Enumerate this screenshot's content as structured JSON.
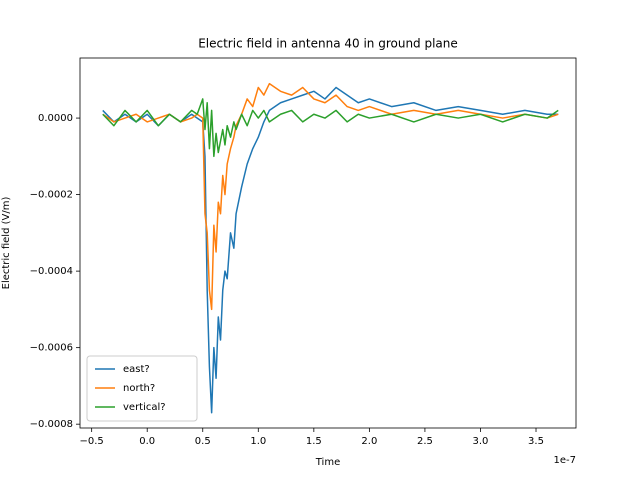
{
  "chart_data": {
    "type": "line",
    "title": "Electric field in antenna 40 in ground plane",
    "x_label": "Time",
    "y_label": "Electric field (V/m)",
    "x_offset_label": "1e-7",
    "x": [
      -0.4,
      -0.3,
      -0.2,
      -0.1,
      0,
      0.1,
      0.2,
      0.3,
      0.4,
      0.45,
      0.5,
      0.52,
      0.54,
      0.56,
      0.58,
      0.6,
      0.62,
      0.64,
      0.66,
      0.68,
      0.7,
      0.72,
      0.75,
      0.78,
      0.8,
      0.85,
      0.9,
      0.95,
      1.0,
      1.05,
      1.1,
      1.2,
      1.3,
      1.4,
      1.5,
      1.6,
      1.7,
      1.8,
      1.9,
      2.0,
      2.2,
      2.4,
      2.6,
      2.8,
      3.0,
      3.2,
      3.4,
      3.6,
      3.7
    ],
    "series": [
      {
        "name": "east?",
        "color": "#1f77b4",
        "values": [
          2e-05,
          -1e-05,
          1e-05,
          -1e-05,
          1e-05,
          -2e-05,
          1e-05,
          -1e-05,
          1e-05,
          0,
          -1e-05,
          -0.0001,
          -0.00045,
          -0.00065,
          -0.00077,
          -0.0006,
          -0.00068,
          -0.00052,
          -0.00058,
          -0.00045,
          -0.0004,
          -0.00042,
          -0.0003,
          -0.00034,
          -0.00025,
          -0.00018,
          -0.00012,
          -8e-05,
          -5e-05,
          -1e-05,
          2e-05,
          4e-05,
          5e-05,
          6e-05,
          7e-05,
          5e-05,
          8e-05,
          6e-05,
          4e-05,
          5e-05,
          3e-05,
          4e-05,
          2e-05,
          3e-05,
          2e-05,
          1e-05,
          2e-05,
          1e-05,
          1e-05
        ]
      },
      {
        "name": "north?",
        "color": "#ff7f0e",
        "values": [
          1e-05,
          -1e-05,
          0,
          1e-05,
          -1e-05,
          0,
          1e-05,
          -1e-05,
          0,
          1e-05,
          0,
          -0.00025,
          -0.0003,
          -0.00045,
          -0.0005,
          -0.00028,
          -0.00035,
          -0.00022,
          -0.00025,
          -0.00015,
          -0.0002,
          -0.00012,
          -8e-05,
          -5e-05,
          -2e-05,
          1e-05,
          5e-05,
          3e-05,
          8e-05,
          6e-05,
          9e-05,
          7e-05,
          6e-05,
          8e-05,
          5e-05,
          4e-05,
          6e-05,
          3e-05,
          2e-05,
          3e-05,
          1e-05,
          2e-05,
          1e-05,
          2e-05,
          1e-05,
          0,
          1e-05,
          0,
          1e-05
        ]
      },
      {
        "name": "vertical?",
        "color": "#2ca02c",
        "values": [
          1e-05,
          -2e-05,
          2e-05,
          -1e-05,
          2e-05,
          -2e-05,
          1e-05,
          -1e-05,
          2e-05,
          1e-05,
          5e-05,
          -3e-05,
          4e-05,
          -8e-05,
          2e-05,
          -0.0001,
          -4e-05,
          -9e-05,
          -6e-05,
          -3e-05,
          -7e-05,
          -2e-05,
          -5e-05,
          -1e-05,
          -3e-05,
          1e-05,
          -2e-05,
          2e-05,
          0,
          2e-05,
          -1e-05,
          1e-05,
          2e-05,
          -1e-05,
          1e-05,
          0,
          2e-05,
          -1e-05,
          1e-05,
          0,
          1e-05,
          -1e-05,
          1e-05,
          0,
          1e-05,
          -1e-05,
          1e-05,
          0,
          2e-05
        ]
      }
    ],
    "xlim": [
      -0.605,
      3.86
    ],
    "ylim": [
      -0.00081,
      0.000157
    ],
    "xticks": [
      {
        "value": -0.5,
        "label": "−0.5"
      },
      {
        "value": 0,
        "label": "0.0"
      },
      {
        "value": 0.5,
        "label": "0.5"
      },
      {
        "value": 1,
        "label": "1.0"
      },
      {
        "value": 1.5,
        "label": "1.5"
      },
      {
        "value": 2,
        "label": "2.0"
      },
      {
        "value": 2.5,
        "label": "2.5"
      },
      {
        "value": 3,
        "label": "3.0"
      },
      {
        "value": 3.5,
        "label": "3.5"
      }
    ],
    "yticks": [
      {
        "value": 0,
        "label": "0.0000"
      },
      {
        "value": -0.0002,
        "label": "−0.0002"
      },
      {
        "value": -0.0004,
        "label": "−0.0004"
      },
      {
        "value": -0.0006,
        "label": "−0.0006"
      },
      {
        "value": -0.0008,
        "label": "−0.0008"
      }
    ],
    "grid": false,
    "legend": "lower left"
  }
}
